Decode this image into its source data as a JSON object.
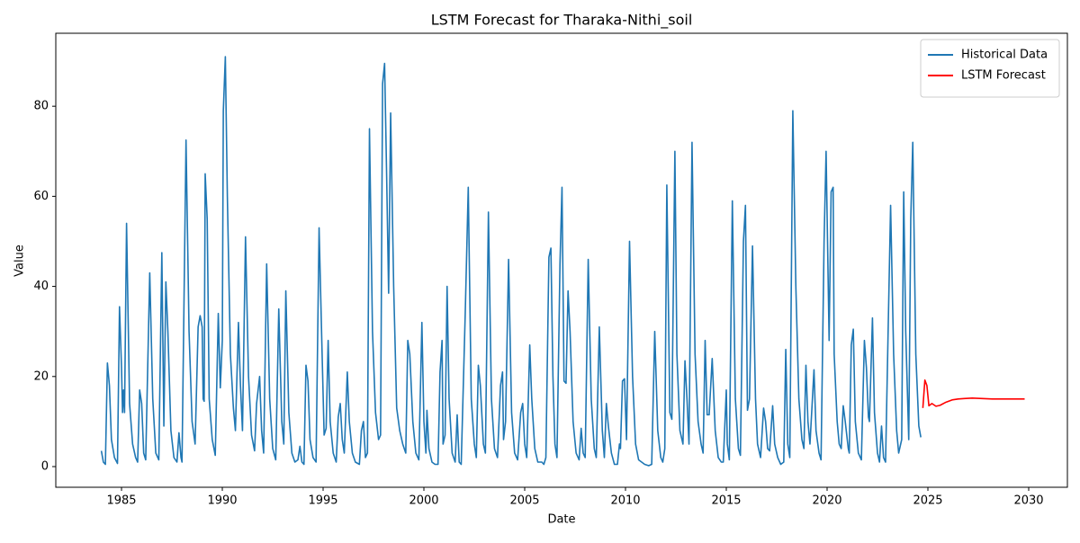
{
  "chart_data": {
    "type": "line",
    "title": "LSTM Forecast for Tharaka-Nithi_soil",
    "xlabel": "Date",
    "ylabel": "Value",
    "xlim": [
      1981.74,
      2031.92
    ],
    "ylim": [
      -4.59,
      96.2
    ],
    "xticks": [
      1985,
      1990,
      1995,
      2000,
      2005,
      2010,
      2015,
      2020,
      2025,
      2030
    ],
    "yticks": [
      0,
      20,
      40,
      60,
      80
    ],
    "legend": "upper right",
    "grid": false,
    "series": [
      {
        "name": "Historical Data",
        "color": "#1f77b4",
        "x": [
          1984.0,
          1984.1,
          1984.2,
          1984.3,
          1984.4,
          1984.5,
          1984.65,
          1984.8,
          1984.9,
          1985.0,
          1985.05,
          1985.1,
          1985.15,
          1985.25,
          1985.4,
          1985.55,
          1985.7,
          1985.8,
          1985.9,
          1986.0,
          1986.1,
          1986.2,
          1986.4,
          1986.55,
          1986.7,
          1986.85,
          1987.0,
          1987.1,
          1987.2,
          1987.3,
          1987.45,
          1987.6,
          1987.75,
          1987.85,
          1987.95,
          1988.0,
          1988.2,
          1988.35,
          1988.5,
          1988.65,
          1988.8,
          1988.9,
          1989.0,
          1989.05,
          1989.1,
          1989.15,
          1989.25,
          1989.35,
          1989.5,
          1989.65,
          1989.8,
          1989.9,
          1990.0,
          1990.05,
          1990.15,
          1990.25,
          1990.4,
          1990.55,
          1990.65,
          1990.8,
          1990.9,
          1991.0,
          1991.15,
          1991.3,
          1991.45,
          1991.6,
          1991.7,
          1991.85,
          1991.95,
          1992.05,
          1992.2,
          1992.35,
          1992.5,
          1992.65,
          1992.8,
          1992.95,
          1993.05,
          1993.15,
          1993.3,
          1993.45,
          1993.6,
          1993.75,
          1993.85,
          1993.95,
          1994.05,
          1994.15,
          1994.25,
          1994.35,
          1994.5,
          1994.65,
          1994.8,
          1994.95,
          1995.05,
          1995.15,
          1995.25,
          1995.35,
          1995.5,
          1995.65,
          1995.75,
          1995.85,
          1995.95,
          1996.05,
          1996.2,
          1996.3,
          1996.45,
          1996.6,
          1996.8,
          1996.9,
          1997.0,
          1997.1,
          1997.2,
          1997.3,
          1997.45,
          1997.6,
          1997.75,
          1997.85,
          1997.95,
          1998.05,
          1998.15,
          1998.25,
          1998.35,
          1998.5,
          1998.65,
          1998.8,
          1998.95,
          1999.1,
          1999.2,
          1999.3,
          1999.45,
          1999.6,
          1999.75,
          1999.9,
          2000.0,
          2000.1,
          2000.15,
          2000.25,
          2000.4,
          2000.55,
          2000.7,
          2000.8,
          2000.9,
          2000.95,
          2001.05,
          2001.15,
          2001.25,
          2001.4,
          2001.55,
          2001.65,
          2001.75,
          2001.85,
          2002.05,
          2002.2,
          2002.35,
          2002.5,
          2002.6,
          2002.7,
          2002.8,
          2002.95,
          2003.05,
          2003.2,
          2003.35,
          2003.5,
          2003.65,
          2003.8,
          2003.9,
          2003.95,
          2004.05,
          2004.2,
          2004.35,
          2004.5,
          2004.65,
          2004.8,
          2004.9,
          2005.0,
          2005.1,
          2005.25,
          2005.35,
          2005.5,
          2005.65,
          2005.85,
          2005.95,
          2006.05,
          2006.2,
          2006.3,
          2006.4,
          2006.5,
          2006.6,
          2006.75,
          2006.85,
          2006.95,
          2007.05,
          2007.15,
          2007.25,
          2007.4,
          2007.55,
          2007.7,
          2007.8,
          2007.9,
          2008.0,
          2008.15,
          2008.3,
          2008.45,
          2008.55,
          2008.7,
          2008.85,
          2008.95,
          2009.05,
          2009.15,
          2009.3,
          2009.45,
          2009.6,
          2009.7,
          2009.75,
          2009.85,
          2009.95,
          2010.05,
          2010.2,
          2010.35,
          2010.5,
          2010.65,
          2010.8,
          2010.95,
          2011.15,
          2011.3,
          2011.45,
          2011.6,
          2011.75,
          2011.85,
          2011.95,
          2012.05,
          2012.2,
          2012.3,
          2012.45,
          2012.55,
          2012.7,
          2012.85,
          2012.95,
          2013.05,
          2013.15,
          2013.3,
          2013.45,
          2013.6,
          2013.75,
          2013.85,
          2013.95,
          2014.05,
          2014.15,
          2014.3,
          2014.45,
          2014.6,
          2014.75,
          2014.85,
          2015.0,
          2015.05,
          2015.15,
          2015.3,
          2015.45,
          2015.6,
          2015.7,
          2015.85,
          2015.95,
          2016.05,
          2016.15,
          2016.3,
          2016.45,
          2016.55,
          2016.7,
          2016.85,
          2016.95,
          2017.05,
          2017.15,
          2017.3,
          2017.4,
          2017.55,
          2017.7,
          2017.85,
          2017.95,
          2018.05,
          2018.15,
          2018.3,
          2018.45,
          2018.6,
          2018.75,
          2018.85,
          2018.95,
          2019.05,
          2019.15,
          2019.35,
          2019.45,
          2019.6,
          2019.7,
          2019.85,
          2019.95,
          2020.1,
          2020.2,
          2020.3,
          2020.35,
          2020.5,
          2020.6,
          2020.7,
          2020.8,
          2020.9,
          2021.05,
          2021.1,
          2021.2,
          2021.3,
          2021.4,
          2021.55,
          2021.7,
          2021.85,
          2021.95,
          2022.05,
          2022.1,
          2022.25,
          2022.35,
          2022.5,
          2022.6,
          2022.7,
          2022.8,
          2022.9,
          2023.15,
          2023.3,
          2023.45,
          2023.55,
          2023.7,
          2023.8,
          2023.9,
          2024.05,
          2024.15,
          2024.25,
          2024.4,
          2024.55,
          2024.65
        ],
        "values": [
          3.5,
          1,
          0.5,
          23,
          18,
          6,
          2,
          0.7,
          35.5,
          22,
          12,
          17,
          12,
          54,
          14,
          5,
          2,
          1,
          17,
          14,
          3,
          1.5,
          43,
          15,
          3,
          1.5,
          47.5,
          9,
          41,
          30,
          8,
          2,
          1,
          7.5,
          2,
          1,
          72.5,
          30,
          10,
          5,
          31,
          33.5,
          31,
          15,
          14.5,
          65,
          55,
          15,
          6,
          2.5,
          34,
          17.5,
          28,
          79,
          91,
          60,
          25,
          13,
          8,
          32,
          18,
          8,
          51,
          20,
          7,
          3.5,
          14,
          20,
          8,
          3,
          45,
          15,
          4,
          1.5,
          35,
          10,
          5,
          39,
          12,
          3,
          1,
          1.5,
          4.5,
          1,
          0.5,
          22.5,
          19,
          6,
          2,
          1,
          53,
          25,
          7,
          8.5,
          28,
          10,
          3,
          1,
          11,
          14,
          6,
          3,
          21,
          10,
          3,
          1,
          0.5,
          8,
          10,
          2,
          3,
          75,
          30,
          12,
          6,
          7,
          85,
          89.5,
          65,
          38.5,
          78.5,
          40,
          13,
          8,
          5,
          3,
          28,
          25,
          10,
          3,
          1.5,
          32,
          10,
          3,
          12.5,
          4,
          1,
          0.5,
          0.5,
          21,
          28,
          5,
          7,
          40,
          15,
          3,
          1,
          11.5,
          1,
          0.5,
          34,
          62,
          15,
          5,
          2,
          22.5,
          18,
          5,
          3,
          56.5,
          15,
          4,
          2,
          18,
          21,
          6,
          10,
          46,
          12,
          3,
          1.5,
          12,
          14,
          5,
          2,
          27,
          15,
          4,
          1,
          1,
          0.5,
          2,
          46.5,
          48.5,
          20,
          5,
          2,
          45,
          62,
          19,
          18.5,
          39,
          30,
          10,
          3,
          1.5,
          8.5,
          3,
          2,
          46,
          15,
          4,
          2,
          31,
          8,
          2,
          14,
          9,
          3,
          0.5,
          0.5,
          5,
          4,
          19,
          19.5,
          6,
          50,
          20,
          5,
          1.5,
          1,
          0.5,
          0.2,
          0.5,
          30,
          8,
          2,
          1,
          4,
          62.5,
          12,
          10.5,
          70,
          25,
          8,
          5,
          23.5,
          15,
          5,
          72,
          25,
          10,
          5,
          3,
          28,
          11.5,
          11.5,
          24,
          8,
          2,
          1,
          1,
          17,
          5,
          1.5,
          59,
          15,
          4,
          2.5,
          50,
          58,
          12.5,
          15,
          49,
          15,
          5,
          2,
          13,
          10,
          4,
          3.5,
          13.5,
          5,
          2,
          0.5,
          1,
          26,
          5,
          2,
          79,
          40,
          15,
          6,
          4,
          22.5,
          10,
          5,
          21.5,
          8,
          3,
          1.5,
          50,
          70,
          28,
          61,
          62,
          25,
          10,
          5,
          4,
          13.5,
          10,
          4,
          3,
          27,
          30.5,
          10,
          3,
          1.5,
          28,
          22,
          11,
          10,
          33,
          12,
          3,
          1,
          9,
          2,
          1,
          58,
          25,
          8,
          3,
          6,
          61,
          30,
          6,
          55,
          72,
          25,
          9,
          6.5
        ]
      },
      {
        "name": "LSTM Forecast",
        "color": "#ff0000",
        "x": [
          2024.75,
          2024.85,
          2024.95,
          2025.05,
          2025.2,
          2025.4,
          2025.6,
          2025.9,
          2026.2,
          2026.5,
          2026.8,
          2027.2,
          2027.7,
          2028.2,
          2028.8,
          2029.3,
          2029.8
        ],
        "values": [
          13,
          19.2,
          18,
          13.5,
          14,
          13.4,
          13.6,
          14.3,
          14.8,
          15,
          15.1,
          15.2,
          15.1,
          15,
          15,
          15,
          15
        ]
      }
    ]
  }
}
